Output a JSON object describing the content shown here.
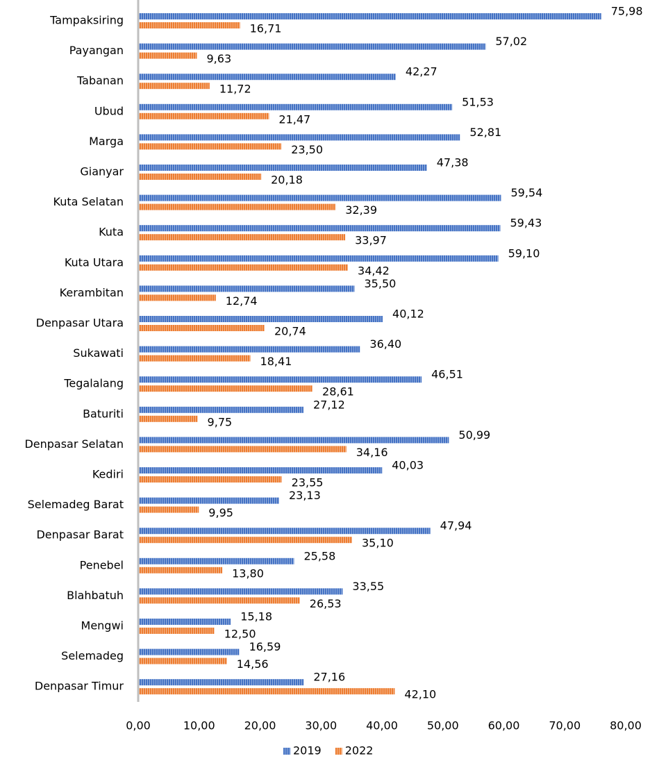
{
  "chart_data": {
    "type": "bar",
    "orientation": "horizontal",
    "categories": [
      "Tampaksiring",
      "Payangan",
      "Tabanan",
      "Ubud",
      "Marga",
      "Gianyar",
      "Kuta Selatan",
      "Kuta",
      "Kuta Utara",
      "Kerambitan",
      "Denpasar Utara",
      "Sukawati",
      "Tegalalang",
      "Baturiti",
      "Denpasar Selatan",
      "Kediri",
      "Selemadeg Barat",
      "Denpasar Barat",
      "Penebel",
      "Blahbatuh",
      "Mengwi",
      "Selemadeg",
      "Denpasar Timur"
    ],
    "series": [
      {
        "name": "2019",
        "color": "#4472c4",
        "values": [
          75.98,
          57.02,
          42.27,
          51.53,
          52.81,
          47.38,
          59.54,
          59.43,
          59.1,
          35.5,
          40.12,
          36.4,
          46.51,
          27.12,
          50.99,
          40.03,
          23.13,
          47.94,
          25.58,
          33.55,
          15.18,
          16.59,
          27.16
        ],
        "value_labels": [
          "75,98",
          "57,02",
          "42,27",
          "51,53",
          "52,81",
          "47,38",
          "59,54",
          "59,43",
          "59,10",
          "35,50",
          "40,12",
          "36,40",
          "46,51",
          "27,12",
          "50,99",
          "40,03",
          "23,13",
          "47,94",
          "25,58",
          "33,55",
          "15,18",
          "16,59",
          "27,16"
        ]
      },
      {
        "name": "2022",
        "color": "#ed7d31",
        "values": [
          16.71,
          9.63,
          11.72,
          21.47,
          23.5,
          20.18,
          32.39,
          33.97,
          34.42,
          12.74,
          20.74,
          18.41,
          28.61,
          9.75,
          34.16,
          23.55,
          9.95,
          35.1,
          13.8,
          26.53,
          12.5,
          14.56,
          42.1
        ],
        "value_labels": [
          "16,71",
          "9,63",
          "11,72",
          "21,47",
          "23,50",
          "20,18",
          "32,39",
          "33,97",
          "34,42",
          "12,74",
          "20,74",
          "18,41",
          "28,61",
          "9,75",
          "34,16",
          "23,55",
          "9,95",
          "35,10",
          "13,80",
          "26,53",
          "12,50",
          "14,56",
          "42,10"
        ]
      }
    ],
    "xlim": [
      0,
      80
    ],
    "xticks": [
      {
        "value": 0,
        "label": "0,00"
      },
      {
        "value": 10,
        "label": "10,00"
      },
      {
        "value": 20,
        "label": "20,00"
      },
      {
        "value": 30,
        "label": "30,00"
      },
      {
        "value": 40,
        "label": "40,00"
      },
      {
        "value": 50,
        "label": "50,00"
      },
      {
        "value": 60,
        "label": "60,00"
      },
      {
        "value": 70,
        "label": "70,00"
      },
      {
        "value": 80,
        "label": "80,00"
      }
    ],
    "grid": false,
    "legend": "bottom"
  }
}
